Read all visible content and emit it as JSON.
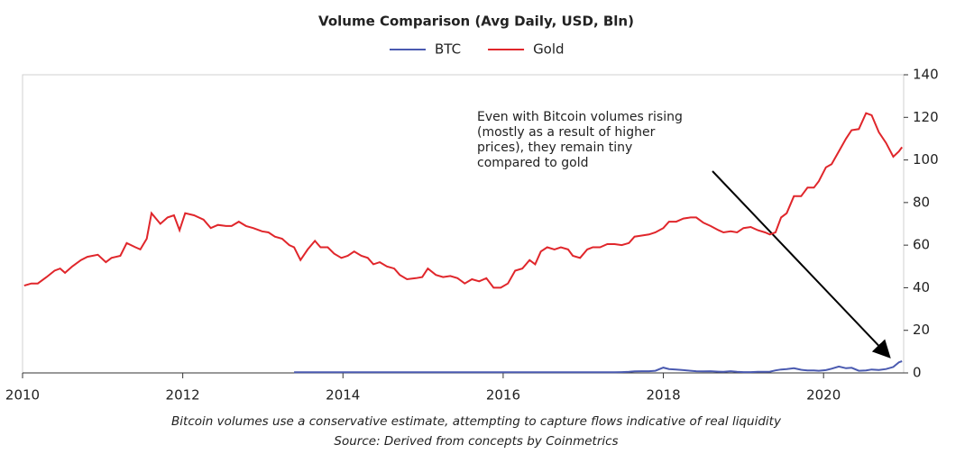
{
  "chart_data": {
    "type": "line",
    "title": "Volume Comparison (Avg Daily, USD, Bln)",
    "x": [
      2010.02,
      2010.11,
      2010.19,
      2010.3,
      2010.4,
      2010.47,
      2010.53,
      2010.62,
      2010.73,
      2010.81,
      2010.94,
      2011.04,
      2011.11,
      2011.22,
      2011.3,
      2011.41,
      2011.47,
      2011.55,
      2011.61,
      2011.72,
      2011.81,
      2011.89,
      2011.96,
      2012.03,
      2012.14,
      2012.26,
      2012.35,
      2012.44,
      2012.54,
      2012.61,
      2012.7,
      2012.79,
      2012.88,
      2012.99,
      2013.07,
      2013.15,
      2013.24,
      2013.33,
      2013.39,
      2013.47,
      2013.56,
      2013.65,
      2013.72,
      2013.81,
      2013.89,
      2013.98,
      2014.06,
      2014.14,
      2014.23,
      2014.31,
      2014.38,
      2014.46,
      2014.55,
      2014.64,
      2014.71,
      2014.8,
      2014.91,
      2014.99,
      2015.06,
      2015.16,
      2015.25,
      2015.34,
      2015.43,
      2015.52,
      2015.61,
      2015.7,
      2015.79,
      2015.88,
      2015.97,
      2016.06,
      2016.15,
      2016.24,
      2016.33,
      2016.4,
      2016.47,
      2016.55,
      2016.64,
      2016.72,
      2016.81,
      2016.87,
      2016.96,
      2017.05,
      2017.12,
      2017.21,
      2017.3,
      2017.39,
      2017.48,
      2017.57,
      2017.64,
      2017.73,
      2017.82,
      2017.9,
      2018.0,
      2018.07,
      2018.16,
      2018.25,
      2018.34,
      2018.41,
      2018.5,
      2018.59,
      2018.69,
      2018.75,
      2018.84,
      2018.92,
      2019.0,
      2019.09,
      2019.18,
      2019.27,
      2019.33,
      2019.4,
      2019.47,
      2019.54,
      2019.63,
      2019.72,
      2019.8,
      2019.88,
      2019.94,
      2020.03,
      2020.1,
      2020.19,
      2020.28,
      2020.35,
      2020.44,
      2020.53,
      2020.6,
      2020.69,
      2020.78,
      2020.87,
      2020.94,
      2020.98
    ],
    "series": [
      {
        "name": "BTC",
        "color": "#4a5ab0",
        "values": [
          null,
          null,
          null,
          null,
          null,
          null,
          null,
          null,
          null,
          null,
          null,
          null,
          null,
          null,
          null,
          null,
          null,
          null,
          null,
          null,
          null,
          null,
          null,
          null,
          null,
          null,
          null,
          null,
          null,
          null,
          null,
          null,
          null,
          null,
          null,
          null,
          null,
          null,
          0.3,
          0.3,
          0.3,
          0.3,
          0.3,
          0.3,
          0.3,
          0.3,
          0.3,
          0.3,
          0.3,
          0.3,
          0.3,
          0.3,
          0.3,
          0.3,
          0.3,
          0.3,
          0.3,
          0.3,
          0.3,
          0.3,
          0.3,
          0.3,
          0.3,
          0.3,
          0.3,
          0.3,
          0.3,
          0.3,
          0.3,
          0.3,
          0.3,
          0.3,
          0.3,
          0.3,
          0.3,
          0.3,
          0.3,
          0.3,
          0.3,
          0.3,
          0.3,
          0.3,
          0.3,
          0.3,
          0.3,
          0.3,
          0.4,
          0.5,
          0.7,
          0.8,
          0.8,
          1.0,
          2.5,
          1.8,
          1.6,
          1.3,
          1.0,
          0.8,
          0.7,
          0.8,
          0.6,
          0.5,
          0.8,
          0.5,
          0.4,
          0.4,
          0.5,
          0.5,
          0.6,
          1.2,
          1.6,
          1.8,
          2.2,
          1.5,
          1.2,
          1.2,
          1.0,
          1.3,
          2.0,
          3.0,
          2.2,
          2.4,
          1.0,
          1.2,
          1.6,
          1.4,
          1.8,
          2.8,
          5.0,
          5.5
        ]
      },
      {
        "name": "Gold",
        "color": "#e0262b",
        "values": [
          41,
          42,
          42,
          45,
          48,
          49,
          47,
          50,
          53,
          54.5,
          55.5,
          52,
          54,
          55,
          61,
          59,
          58,
          63,
          75,
          70,
          73,
          74,
          67,
          75,
          74,
          72,
          68,
          69.5,
          69,
          69,
          71,
          69,
          68,
          66.5,
          66,
          64,
          63,
          60,
          59,
          53,
          58,
          62,
          59,
          59,
          56,
          54,
          55,
          57,
          55,
          54,
          51,
          52,
          50,
          49,
          46,
          44,
          44.5,
          45,
          49,
          46,
          45,
          45.5,
          44.5,
          42,
          44,
          43,
          44.5,
          40,
          40,
          42,
          48,
          49,
          53,
          51,
          57,
          59,
          58,
          59,
          58,
          55,
          54,
          58,
          59,
          59,
          60.5,
          60.5,
          60,
          61,
          64,
          64.5,
          65,
          66,
          68,
          71,
          71,
          72.5,
          73,
          73,
          70.5,
          69,
          67,
          66,
          66.5,
          66,
          68,
          68.5,
          67,
          66,
          65,
          66,
          73,
          75,
          83,
          83,
          87,
          87,
          90,
          96.5,
          98,
          104,
          110,
          114,
          114.5,
          122,
          121,
          113,
          108,
          101.5,
          104,
          106
        ]
      }
    ],
    "xlim": [
      2010,
      2021
    ],
    "xticks": [
      2010,
      2012,
      2014,
      2016,
      2018,
      2020
    ],
    "ylim": [
      0,
      140
    ],
    "yticks": [
      0,
      20,
      40,
      60,
      80,
      100,
      120,
      140
    ],
    "annotation": [
      "Even with Bitcoin volumes rising",
      "(mostly as a result of higher",
      "prices), they remain tiny",
      "compared to gold"
    ],
    "note": "Bitcoin volumes use a conservative estimate, attempting to capture flows indicative of real liquidity",
    "source": "Source: Derived from concepts by Coinmetrics"
  }
}
